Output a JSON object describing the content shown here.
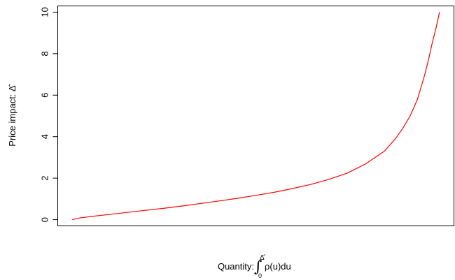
{
  "chart_data": {
    "type": "line",
    "xlabel": {
      "prefix": "Quantity: ",
      "integral_sign": "∫",
      "upper_limit": "Δ̂",
      "lower_limit": "0",
      "integrand": "ρ(u)du"
    },
    "ylabel": {
      "prefix": "Price impact: ",
      "symbol": "Δ̂"
    },
    "ylim": [
      -0.3,
      10.3
    ],
    "xlim": [
      -0.0393,
      1.0393
    ],
    "x_ticks_shown": false,
    "yticks": [
      0,
      2,
      4,
      6,
      8,
      10
    ],
    "ytick_labels": [
      "0",
      "2",
      "4",
      "6",
      "8",
      "10"
    ],
    "grid": false,
    "legend": "none",
    "series": [
      {
        "color": "#ff0000",
        "x": [
          0,
          0.02,
          0.05,
          0.1,
          0.15,
          0.2,
          0.25,
          0.3,
          0.35,
          0.4,
          0.45,
          0.5,
          0.55,
          0.6,
          0.65,
          0.7,
          0.75,
          0.8,
          0.85,
          0.88,
          0.9,
          0.92,
          0.94,
          0.95,
          0.96,
          0.97,
          0.98,
          0.99,
          1.0
        ],
        "y": [
          0,
          0.08,
          0.15,
          0.25,
          0.35,
          0.45,
          0.55,
          0.66,
          0.78,
          0.9,
          1.03,
          1.17,
          1.32,
          1.5,
          1.7,
          1.95,
          2.25,
          2.7,
          3.3,
          3.9,
          4.4,
          5.0,
          5.8,
          6.4,
          7.0,
          7.7,
          8.5,
          9.2,
          10.0
        ]
      }
    ]
  }
}
